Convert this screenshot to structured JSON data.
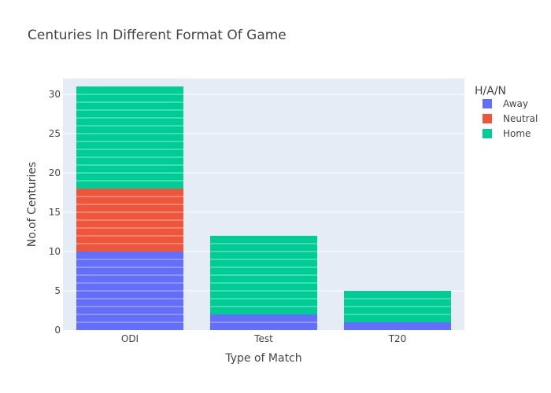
{
  "chart_data": {
    "type": "bar",
    "barmode": "stack",
    "title": "Centuries In Different Format Of Game",
    "xlabel": "Type of Match",
    "ylabel": "No.of Centuries",
    "categories": [
      "ODI",
      "Test",
      "T20"
    ],
    "series": [
      {
        "name": "Away",
        "values": [
          10,
          2,
          1
        ]
      },
      {
        "name": "Neutral",
        "values": [
          8,
          0,
          0
        ]
      },
      {
        "name": "Home",
        "values": [
          13,
          10,
          4
        ]
      }
    ],
    "ylim": [
      0,
      32
    ],
    "yticks": [
      0,
      5,
      10,
      15,
      20,
      25,
      30
    ],
    "grid": true,
    "legend_title": "H/A/N",
    "legend_position": "top-right",
    "colors": {
      "Away": "#636efa",
      "Neutral": "#ef553b",
      "Home": "#00cc96",
      "plot_bg": "#e5ecf6",
      "grid": "#ffffff"
    }
  }
}
